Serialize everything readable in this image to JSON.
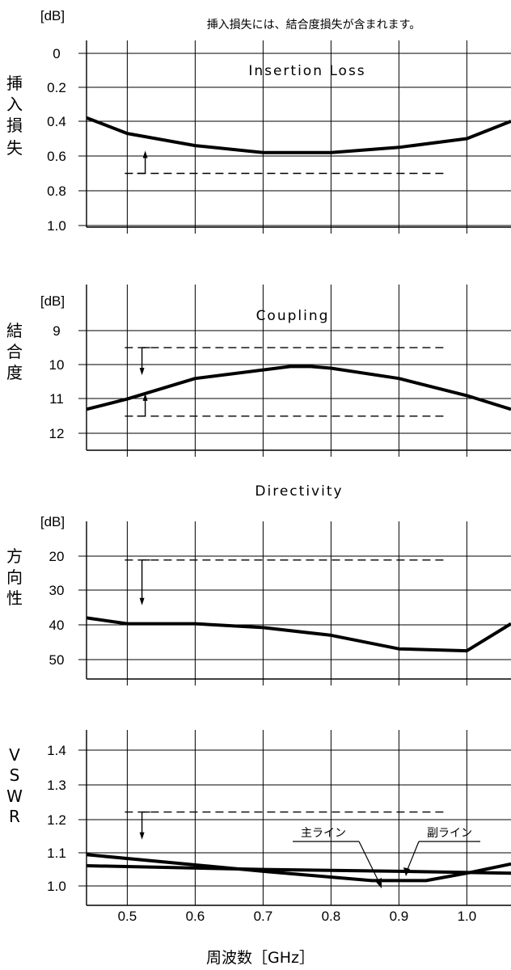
{
  "note": "挿入損失には、結合度損失が含まれます。",
  "x_title": "周波数［GHz］",
  "x_tick_labels": [
    "0.5",
    "0.6",
    "0.7",
    "0.8",
    "0.9",
    "1.0"
  ],
  "chart_data": [
    {
      "type": "line",
      "title": "Insertion Loss",
      "unit": "[dB]",
      "ylabel": "挿入損失",
      "ylim": [
        0,
        1.0
      ],
      "y_inverted": true,
      "y_ticks": [
        "0",
        "0.2",
        "0.4",
        "0.6",
        "0.8",
        "1.0"
      ],
      "xlim": [
        0.44,
        1.065
      ],
      "spec": {
        "value": 0.7,
        "x_range": [
          0.5,
          0.99
        ],
        "direction": "up"
      },
      "series": [
        {
          "x": [
            0.44,
            0.5,
            0.6,
            0.7,
            0.8,
            0.9,
            1.0,
            1.065
          ],
          "values": [
            0.38,
            0.47,
            0.54,
            0.58,
            0.58,
            0.55,
            0.5,
            0.4
          ]
        }
      ]
    },
    {
      "type": "line",
      "title": "Coupling",
      "unit": "[dB]",
      "ylabel": "結合度",
      "ylim": [
        8.0,
        12.0
      ],
      "y_inverted": true,
      "y_ticks": [
        "9",
        "10",
        "11",
        "12"
      ],
      "xlim": [
        0.44,
        1.065
      ],
      "spec_upper": {
        "value": 9.5,
        "x_range": [
          0.5,
          0.99
        ],
        "direction": "down"
      },
      "spec_lower": {
        "value": 11.5,
        "x_range": [
          0.5,
          0.99
        ],
        "direction": "up"
      },
      "series": [
        {
          "x": [
            0.44,
            0.5,
            0.6,
            0.7,
            0.74,
            0.77,
            0.8,
            0.9,
            1.0,
            1.065
          ],
          "values": [
            11.3,
            11.0,
            10.4,
            10.15,
            10.05,
            10.05,
            10.1,
            10.4,
            10.9,
            11.3
          ]
        }
      ]
    },
    {
      "type": "line",
      "title": "Directivity",
      "unit": "[dB]",
      "ylabel": "方向性",
      "ylim": [
        10,
        55
      ],
      "y_inverted": true,
      "y_ticks": [
        "20",
        "30",
        "40",
        "50"
      ],
      "xlim": [
        0.44,
        1.065
      ],
      "spec": {
        "value": 20,
        "x_range": [
          0.5,
          0.99
        ],
        "direction": "down"
      },
      "series": [
        {
          "x": [
            0.44,
            0.5,
            0.6,
            0.7,
            0.8,
            0.9,
            1.0,
            1.065
          ],
          "values": [
            35,
            36.5,
            36.5,
            37.5,
            39.5,
            43,
            43.5,
            36.5
          ]
        }
      ]
    },
    {
      "type": "line",
      "title": "",
      "unit": "",
      "ylabel": "VSWR",
      "ylim": [
        0.97,
        1.45
      ],
      "y_inverted": false,
      "y_ticks": [
        "1.0",
        "1.1",
        "1.2",
        "1.3",
        "1.4"
      ],
      "xlim": [
        0.44,
        1.065
      ],
      "spec": {
        "value": 1.2,
        "x_range": [
          0.5,
          0.99
        ],
        "direction": "down"
      },
      "series": [
        {
          "name": "主ライン",
          "x": [
            0.44,
            0.7,
            0.86,
            0.94,
            1.0,
            1.065
          ],
          "values": [
            1.085,
            1.04,
            1.015,
            1.015,
            1.035,
            1.06
          ]
        },
        {
          "name": "副ライン",
          "x": [
            0.44,
            0.7,
            0.9,
            1.065
          ],
          "values": [
            1.055,
            1.045,
            1.04,
            1.035
          ]
        }
      ]
    }
  ]
}
